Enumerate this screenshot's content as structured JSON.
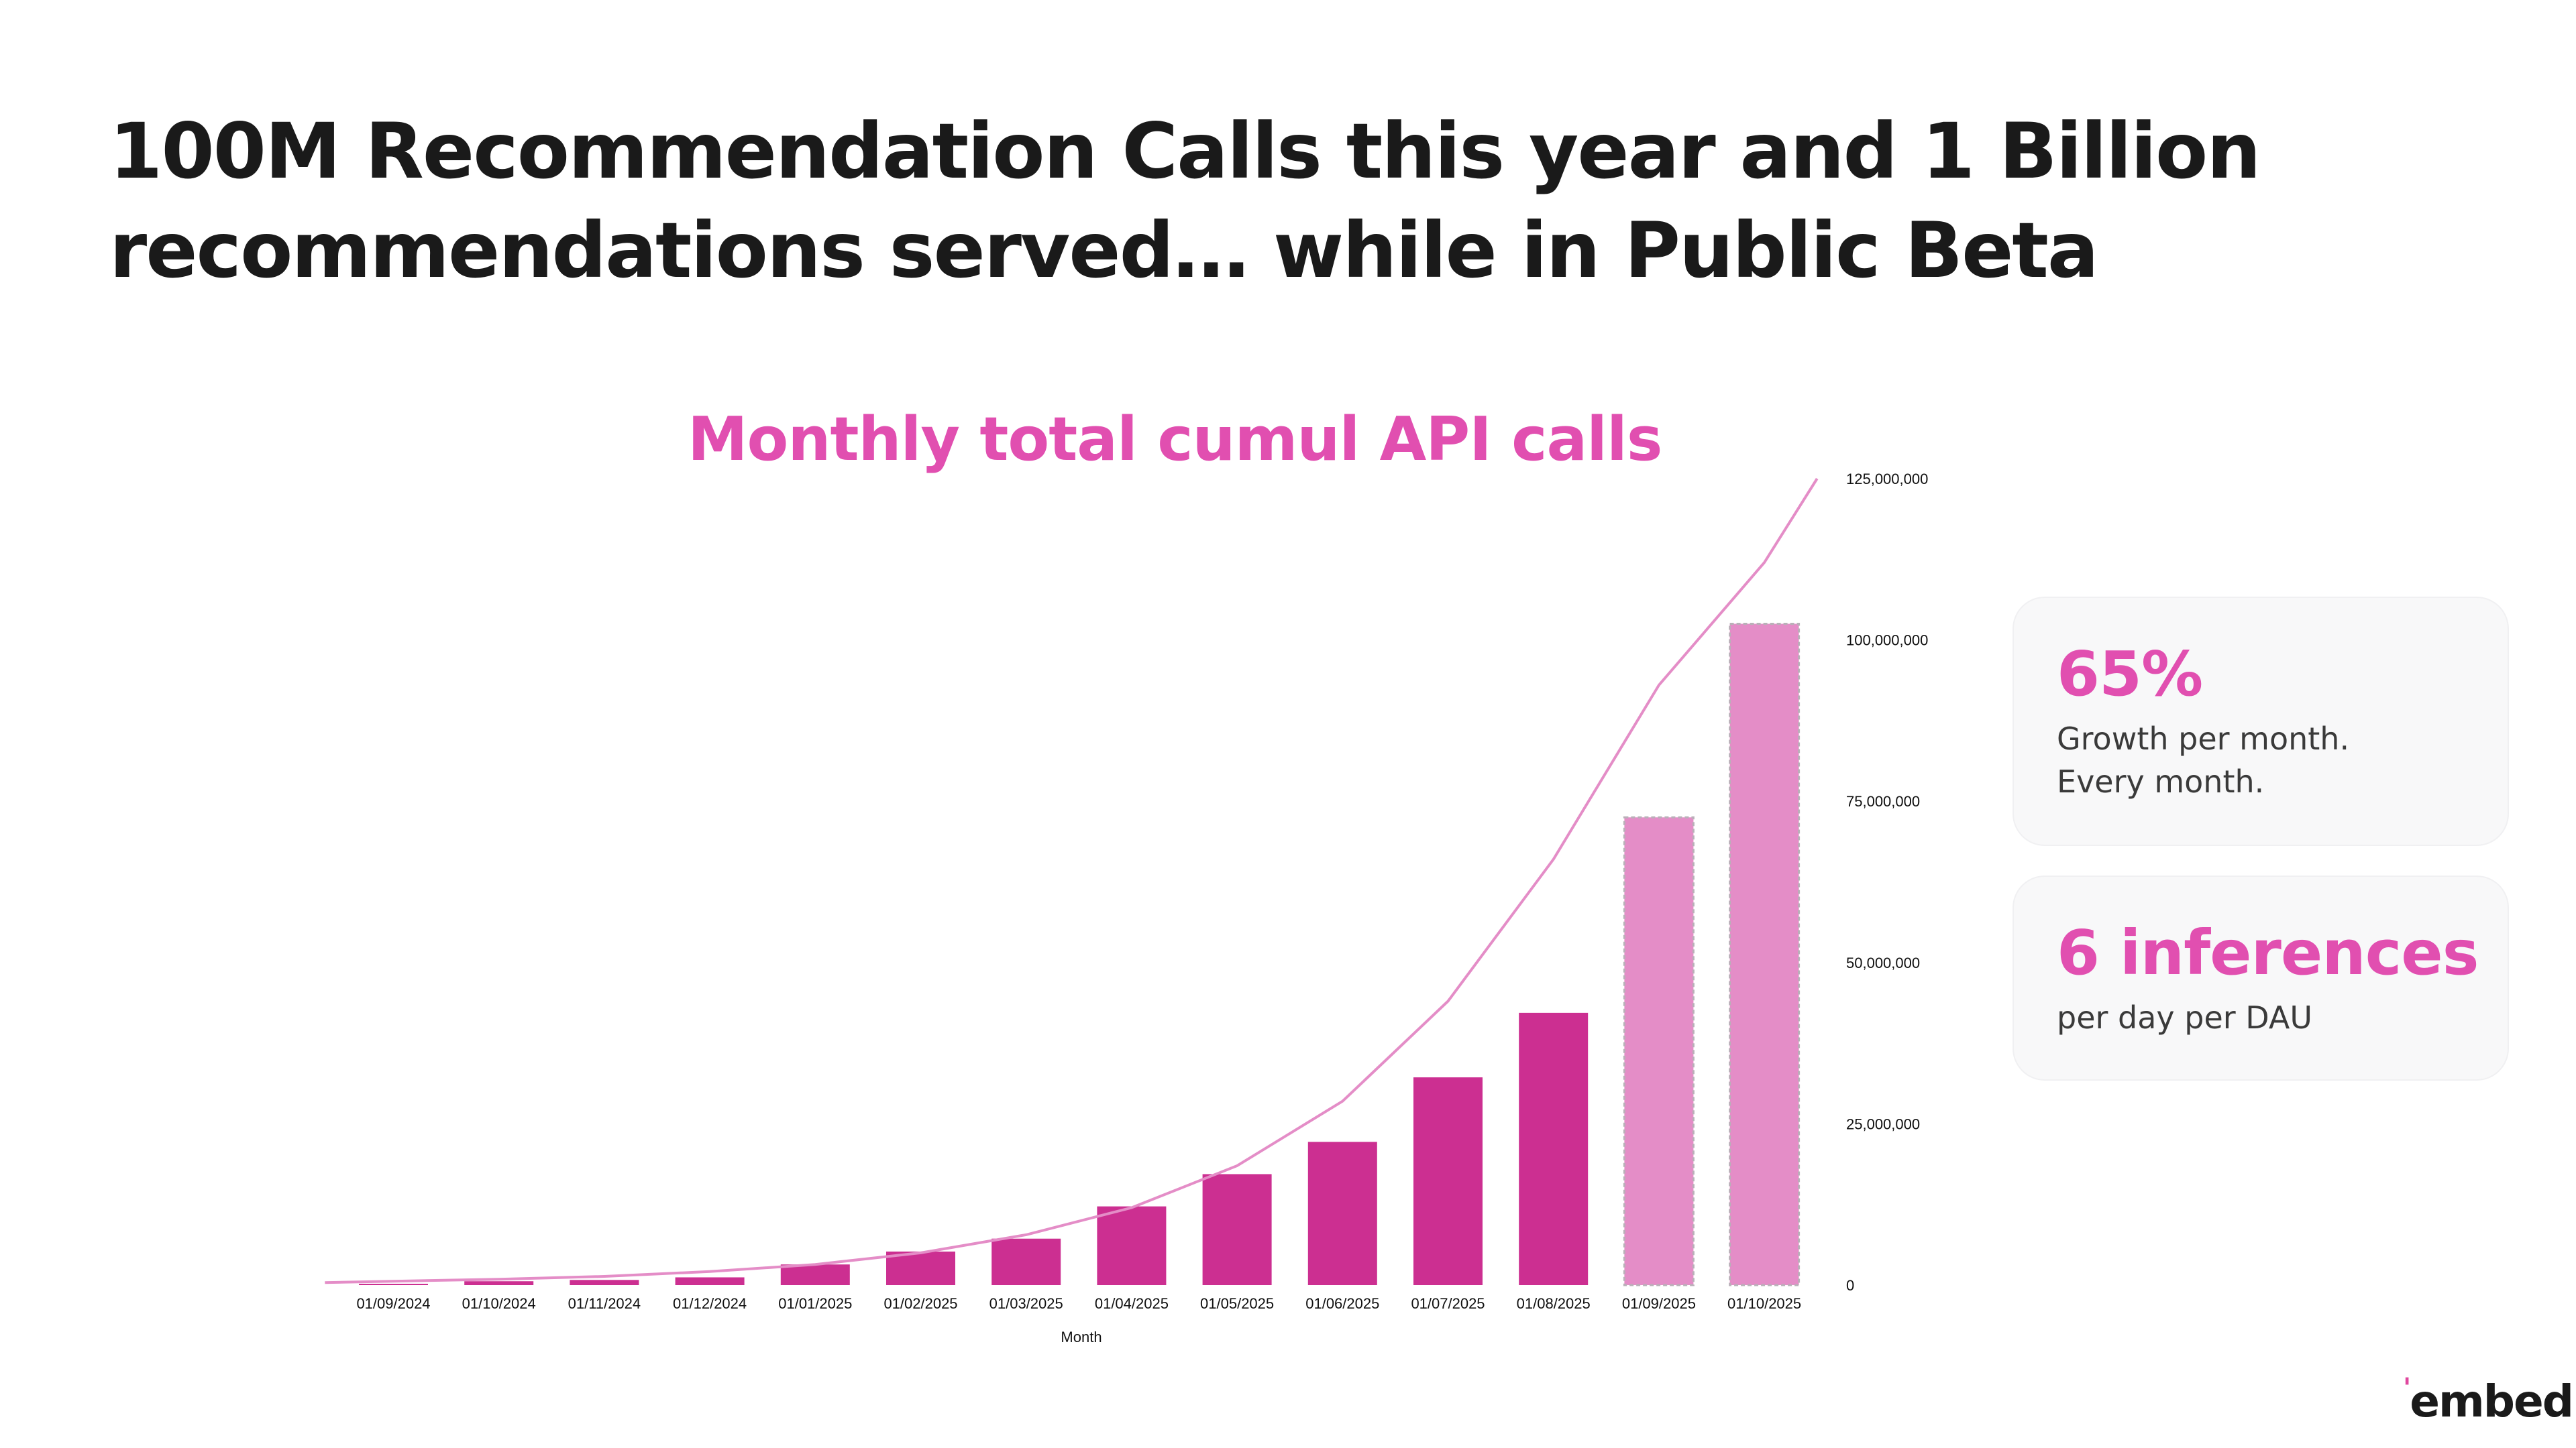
{
  "headline": {
    "line1": "100M Recommendation Calls this year and 1 Billion",
    "line2": "recommendations served… while in Public Beta"
  },
  "chart_data": {
    "type": "bar",
    "title": "Monthly total cumul API calls",
    "xlabel": "Month",
    "ylabel": "",
    "ylim": [
      0,
      125000000
    ],
    "y_ticks": [
      "0",
      "25,000,000",
      "50,000,000",
      "75,000,000",
      "100,000,000",
      "125,000,000"
    ],
    "y_tick_values": [
      0,
      25000000,
      50000000,
      75000000,
      100000000,
      125000000
    ],
    "y_axis_position": "right",
    "grid": false,
    "categories": [
      "01/09/2024",
      "01/10/2024",
      "01/11/2024",
      "01/12/2024",
      "01/01/2025",
      "01/02/2025",
      "01/03/2025",
      "01/04/2025",
      "01/05/2025",
      "01/06/2025",
      "01/07/2025",
      "01/08/2025",
      "01/09/2025",
      "01/10/2025"
    ],
    "values": [
      200000,
      600000,
      800000,
      1200000,
      3200000,
      5200000,
      7200000,
      12200000,
      17200000,
      22200000,
      32200000,
      42200000,
      72500000,
      102500000
    ],
    "projected": [
      false,
      false,
      false,
      false,
      false,
      false,
      false,
      false,
      false,
      false,
      false,
      false,
      true,
      true
    ],
    "trendline": {
      "type": "exponential",
      "x": [
        -0.65,
        0,
        1,
        2,
        3,
        4,
        5,
        6,
        7,
        8,
        9,
        10,
        11,
        12,
        13,
        13.5
      ],
      "y": [
        400000,
        600000,
        900000,
        1350000,
        2100000,
        3200000,
        5000000,
        7800000,
        12000000,
        18500000,
        28500000,
        44000000,
        66000000,
        93000000,
        112000000,
        125000000
      ]
    },
    "colors": {
      "bar": "#cc2f91",
      "projected_bar": "#e48dc7",
      "projected_border": "#b9b0b8",
      "trendline": "#e48dc7"
    }
  },
  "stats": [
    {
      "value": "65%",
      "desc_lines": [
        "Growth per month.",
        "Every month."
      ]
    },
    {
      "value": "6 inferences",
      "desc_lines": [
        "per day per DAU"
      ]
    }
  ],
  "brand": {
    "name": "embed",
    "mark": "'"
  }
}
